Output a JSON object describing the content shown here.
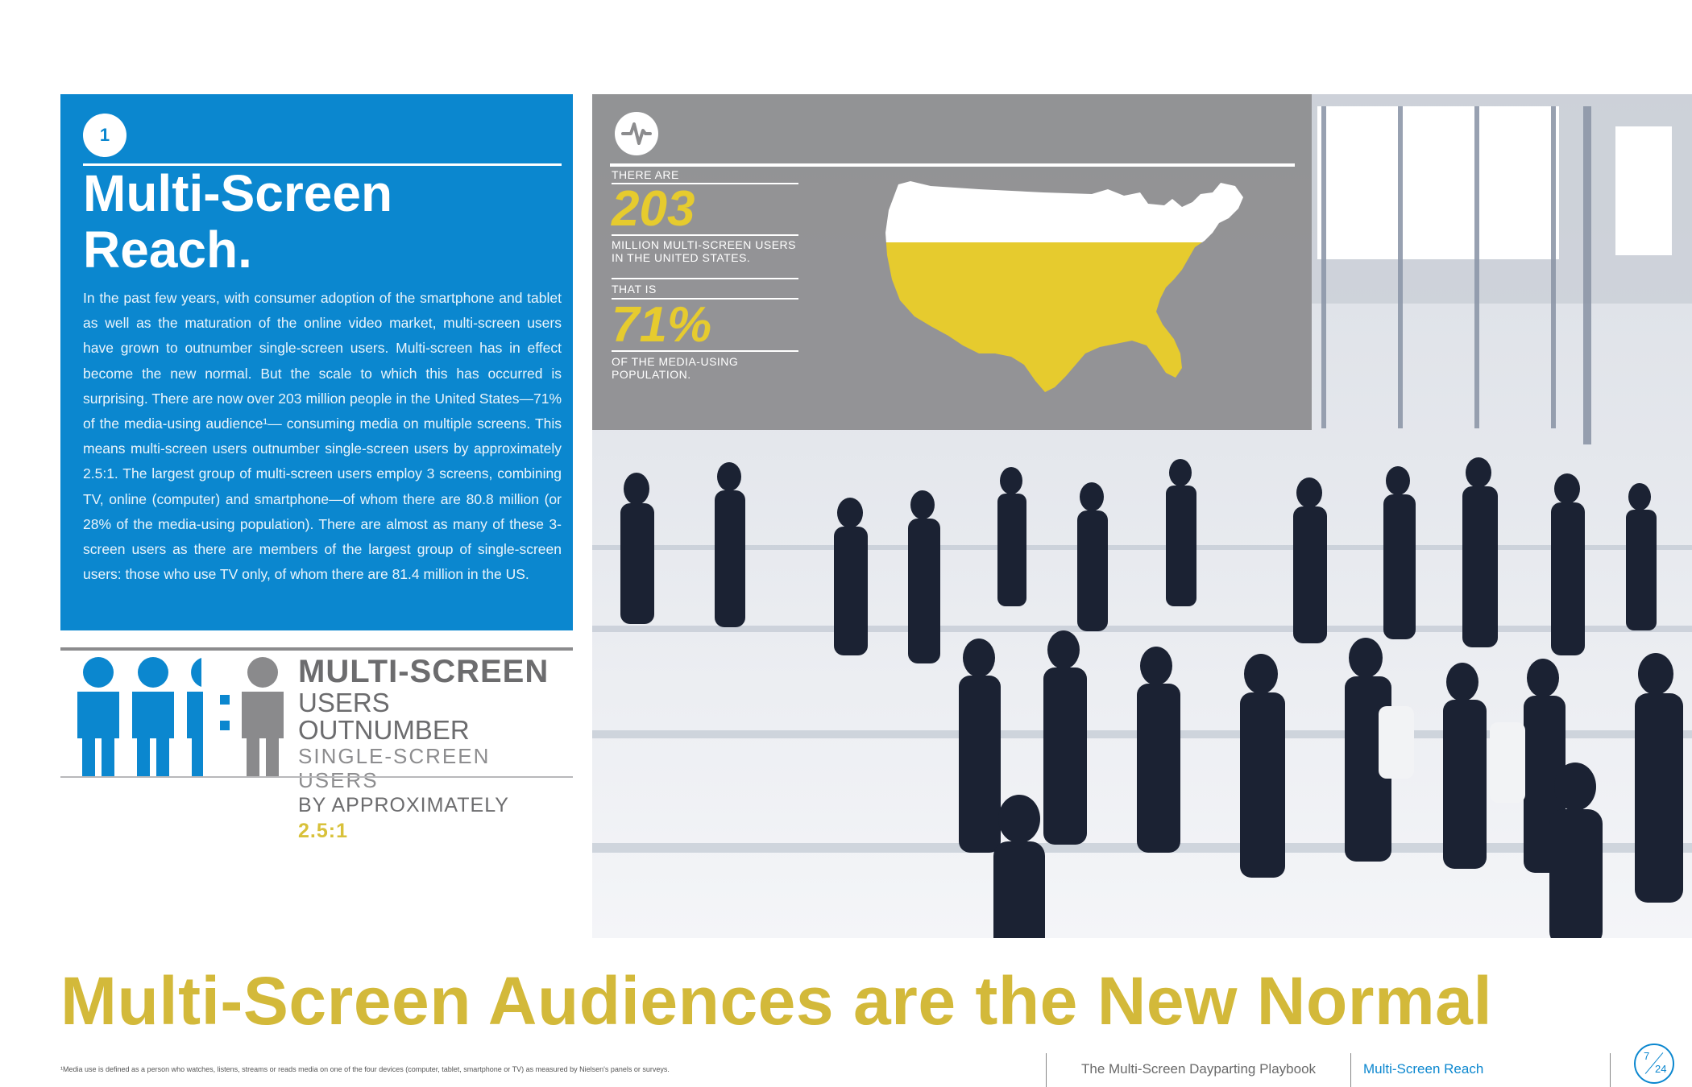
{
  "section": {
    "number": "1",
    "title_line1": "Multi-Screen",
    "title_line2": "Reach.",
    "body": "In the past few years, with consumer adoption of the smartphone and tablet as well as the maturation of the online video market, multi-screen users have grown to outnumber single-screen users. Multi-screen has in effect become the new normal. But the scale to which this has occurred is surprising. There are now over 203 million people in the United States—71% of the media-using audience¹— consuming media on multiple screens. This means multi-screen users outnumber single-screen users by approximately 2.5:1. The largest group of multi-screen users employ 3 screens, combining TV, online (computer) and smartphone—of whom there are 80.8 million (or 28% of the media-using population). There are almost as many of these 3-screen users as there are members of the largest group of single-screen users: those who use TV only, of whom there are 81.4 million in the US."
  },
  "infographic": {
    "line1": "MULTI-SCREEN",
    "line2": "USERS OUTNUMBER",
    "line3": "SINGLE-SCREEN USERS",
    "line4_prefix": "BY APPROXIMATELY",
    "ratio": "2.5:1",
    "colors": {
      "multi": "#0b87cf",
      "single": "#8a8a8c"
    }
  },
  "stats": {
    "icon": "pulse-icon",
    "label1": "THERE ARE",
    "value1": "203",
    "desc1": "MILLION MULTI-SCREEN USERS IN THE UNITED STATES.",
    "label2": "THAT IS",
    "value2": "71%",
    "desc2": "OF THE MEDIA-USING POPULATION.",
    "map_fill_share": 0.71,
    "highlight_color": "#e6cb2e"
  },
  "headline": "Multi-Screen Audiences are the New Normal",
  "footer": {
    "footnote": "¹Media use is defined as a person who watches, listens, streams or reads media on one of the four devices (computer, tablet, smartphone or TV) as measured by Nielsen's panels or surveys.",
    "book": "The Multi-Screen Dayparting Playbook",
    "section": "Multi-Screen Reach",
    "page": "7",
    "total": "24"
  }
}
